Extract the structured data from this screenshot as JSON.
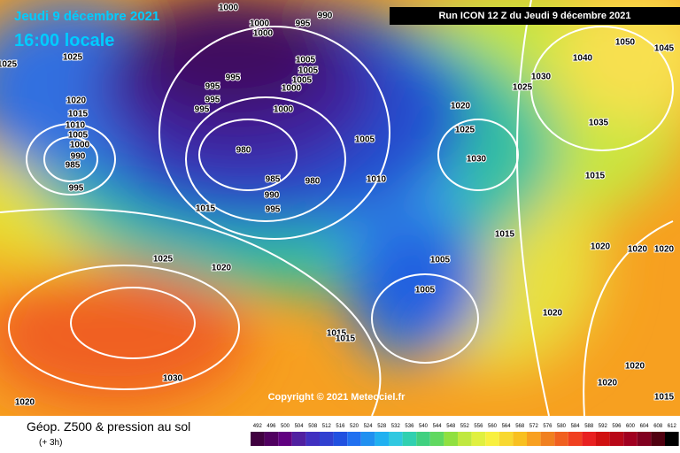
{
  "header": {
    "date": "Jeudi 9 décembre 2021",
    "time": "16:00 locale",
    "run": "Run ICON 12 Z du Jeudi 9 décembre 2021"
  },
  "copyright": "Copyright © 2021 Meteociel.fr",
  "isobar_labels": [
    "1000",
    "990",
    "995",
    "1000",
    "1000",
    "1025",
    "1025",
    "1005",
    "1005",
    "1005",
    "1000",
    "995",
    "995",
    "995",
    "995",
    "1000",
    "1020",
    "1015",
    "1010",
    "1005",
    "1000",
    "990",
    "985",
    "995",
    "980",
    "985",
    "980",
    "990",
    "995",
    "1005",
    "1010",
    "1015",
    "1025",
    "1020",
    "1015",
    "1015",
    "1005",
    "1005",
    "1030",
    "1020",
    "1020",
    "1025",
    "1030",
    "1025",
    "1030",
    "1040",
    "1050",
    "1045",
    "1035",
    "1015",
    "1015",
    "1020",
    "1020",
    "1020",
    "1020",
    "1020",
    "1020",
    "1015"
  ],
  "legend": {
    "title": "Géop. Z500 & pression au sol",
    "subtitle": "(+ 3h)",
    "values": [
      492,
      496,
      500,
      504,
      508,
      512,
      516,
      520,
      524,
      528,
      532,
      536,
      540,
      544,
      548,
      552,
      556,
      560,
      564,
      568,
      572,
      576,
      580,
      584,
      588,
      592,
      596,
      600,
      604,
      608,
      612
    ]
  }
}
